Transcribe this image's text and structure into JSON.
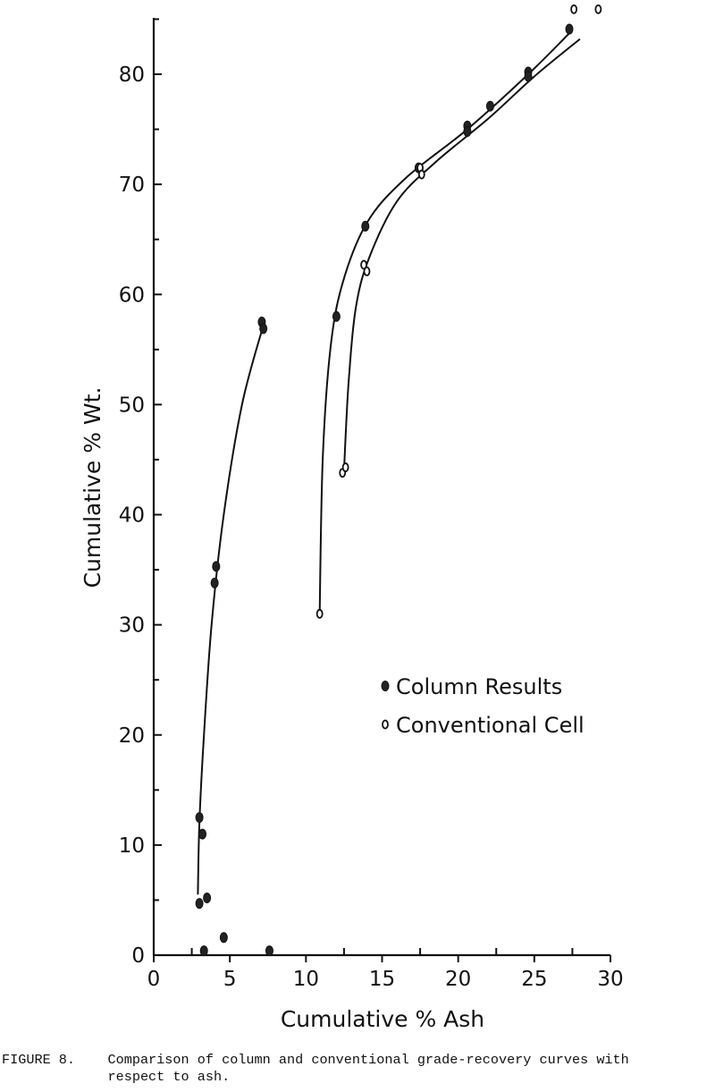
{
  "chart_data": {
    "type": "scatter",
    "title": "",
    "xlabel": "Cumulative % Ash",
    "ylabel": "Cumulative % Wt.",
    "xlim": [
      0,
      30
    ],
    "ylim": [
      0,
      85
    ],
    "x_ticks": [
      0,
      5,
      10,
      15,
      20,
      25,
      30
    ],
    "y_ticks": [
      0,
      10,
      20,
      30,
      40,
      50,
      60,
      70,
      80
    ],
    "grid": false,
    "legend_position": "center-right",
    "series": [
      {
        "name": "Column Results",
        "marker": "filled-circle",
        "points": [
          {
            "x": 3.0,
            "y": 12.5
          },
          {
            "x": 3.2,
            "y": 11.0
          },
          {
            "x": 3.0,
            "y": 4.7
          },
          {
            "x": 3.5,
            "y": 5.2
          },
          {
            "x": 3.3,
            "y": 0.4
          },
          {
            "x": 4.6,
            "y": 1.6
          },
          {
            "x": 7.6,
            "y": 0.4
          },
          {
            "x": 4.0,
            "y": 33.8
          },
          {
            "x": 4.1,
            "y": 35.3
          },
          {
            "x": 7.1,
            "y": 57.5
          },
          {
            "x": 7.2,
            "y": 56.9
          },
          {
            "x": 12.0,
            "y": 58.0
          },
          {
            "x": 13.9,
            "y": 66.2
          },
          {
            "x": 17.4,
            "y": 71.5
          },
          {
            "x": 20.6,
            "y": 75.3
          },
          {
            "x": 20.6,
            "y": 74.8
          },
          {
            "x": 22.1,
            "y": 77.1
          },
          {
            "x": 24.6,
            "y": 80.2
          },
          {
            "x": 24.6,
            "y": 79.8
          },
          {
            "x": 27.3,
            "y": 84.1
          }
        ],
        "curves": [
          [
            {
              "x": 2.9,
              "y": 5.5
            },
            {
              "x": 3.0,
              "y": 12
            },
            {
              "x": 3.3,
              "y": 20
            },
            {
              "x": 3.8,
              "y": 30
            },
            {
              "x": 4.6,
              "y": 40
            },
            {
              "x": 5.8,
              "y": 50
            },
            {
              "x": 7.2,
              "y": 57.2
            }
          ],
          [
            {
              "x": 10.9,
              "y": 31
            },
            {
              "x": 11.1,
              "y": 45
            },
            {
              "x": 11.6,
              "y": 55
            },
            {
              "x": 12.4,
              "y": 61
            },
            {
              "x": 14.0,
              "y": 66.5
            },
            {
              "x": 16.5,
              "y": 70.5
            },
            {
              "x": 20.6,
              "y": 75.0
            },
            {
              "x": 24.6,
              "y": 80.0
            },
            {
              "x": 27.5,
              "y": 84.0
            }
          ]
        ]
      },
      {
        "name": "Conventional Cell",
        "marker": "open-circle",
        "points": [
          {
            "x": 10.9,
            "y": 31.0
          },
          {
            "x": 12.4,
            "y": 43.8
          },
          {
            "x": 12.6,
            "y": 44.3
          },
          {
            "x": 13.8,
            "y": 62.7
          },
          {
            "x": 14.0,
            "y": 62.1
          },
          {
            "x": 17.5,
            "y": 71.5
          },
          {
            "x": 17.6,
            "y": 70.9
          },
          {
            "x": 27.6,
            "y": 85.9
          },
          {
            "x": 29.2,
            "y": 85.9
          }
        ],
        "curves": [
          [
            {
              "x": 12.5,
              "y": 44
            },
            {
              "x": 12.8,
              "y": 52
            },
            {
              "x": 13.3,
              "y": 59
            },
            {
              "x": 14.2,
              "y": 63.5
            },
            {
              "x": 16.0,
              "y": 68.5
            },
            {
              "x": 18.5,
              "y": 72.0
            },
            {
              "x": 22.0,
              "y": 76.0
            },
            {
              "x": 25.0,
              "y": 79.8
            },
            {
              "x": 28.0,
              "y": 83.2
            }
          ]
        ]
      }
    ]
  },
  "caption": {
    "line1": "FIGURE 8.    Comparison of column and conventional grade-recovery curves with",
    "line2": "             respect to ash."
  }
}
